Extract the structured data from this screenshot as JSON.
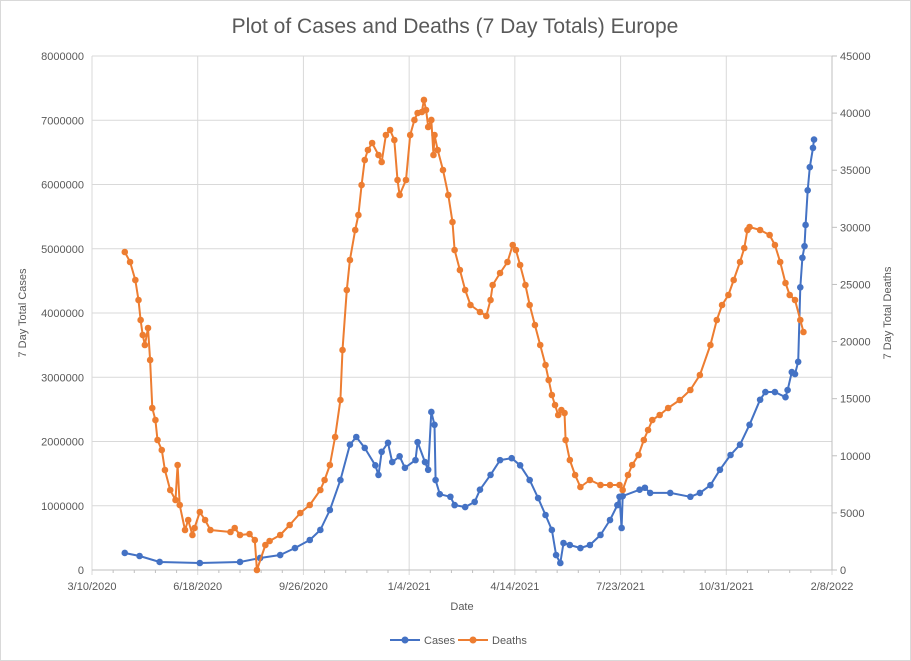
{
  "chart_data": {
    "type": "line",
    "title": "Plot of Cases and Deaths (7 Day Totals) Europe",
    "xlabel": "Date",
    "ylabel": "7 Day Total Cases",
    "y2label": "7 Day Total Deaths",
    "x_unit": "days since 3/10/2020",
    "xlim": [
      0,
      700
    ],
    "ylim": [
      0,
      8000000
    ],
    "y2lim": [
      0,
      45000
    ],
    "grid": true,
    "legend_position": "bottom",
    "x_ticks": [
      {
        "day": 0,
        "label": "3/10/2020"
      },
      {
        "day": 100,
        "label": "6/18/2020"
      },
      {
        "day": 200,
        "label": "9/26/2020"
      },
      {
        "day": 300,
        "label": "1/4/2021"
      },
      {
        "day": 400,
        "label": "4/14/2021"
      },
      {
        "day": 500,
        "label": "7/23/2021"
      },
      {
        "day": 600,
        "label": "10/31/2021"
      },
      {
        "day": 700,
        "label": "2/8/2022"
      }
    ],
    "y_ticks": [
      "0",
      "1000000",
      "2000000",
      "3000000",
      "4000000",
      "5000000",
      "6000000",
      "7000000",
      "8000000"
    ],
    "y2_ticks": [
      "0",
      "5000",
      "10000",
      "15000",
      "20000",
      "25000",
      "30000",
      "35000",
      "40000",
      "45000"
    ],
    "series": [
      {
        "name": "Cases",
        "axis": "left",
        "color": "#4472C4",
        "points": [
          [
            31,
            265000
          ],
          [
            45,
            218000
          ],
          [
            64,
            125000
          ],
          [
            102,
            109000
          ],
          [
            140,
            125000
          ],
          [
            159,
            187000
          ],
          [
            178,
            233000
          ],
          [
            192,
            342000
          ],
          [
            206,
            467000
          ],
          [
            216,
            623000
          ],
          [
            225,
            934000
          ],
          [
            235,
            1400000
          ],
          [
            244,
            1950000
          ],
          [
            250,
            2070000
          ],
          [
            258,
            1900000
          ],
          [
            268,
            1630000
          ],
          [
            271,
            1480000
          ],
          [
            274,
            1840000
          ],
          [
            280,
            1980000
          ],
          [
            284,
            1680000
          ],
          [
            291,
            1770000
          ],
          [
            296,
            1590000
          ],
          [
            306,
            1710000
          ],
          [
            308,
            1990000
          ],
          [
            315,
            1680000
          ],
          [
            318,
            1560000
          ],
          [
            321,
            2460000
          ],
          [
            324,
            2260000
          ],
          [
            325,
            1400000
          ],
          [
            329,
            1180000
          ],
          [
            339,
            1140000
          ],
          [
            343,
            1010000
          ],
          [
            353,
            980000
          ],
          [
            362,
            1060000
          ],
          [
            367,
            1250000
          ],
          [
            377,
            1480000
          ],
          [
            386,
            1710000
          ],
          [
            397,
            1740000
          ],
          [
            405,
            1630000
          ],
          [
            414,
            1400000
          ],
          [
            422,
            1120000
          ],
          [
            429,
            856000
          ],
          [
            435,
            623000
          ],
          [
            439,
            233000
          ],
          [
            443,
            109000
          ],
          [
            446,
            420000
          ],
          [
            452,
            389000
          ],
          [
            462,
            342000
          ],
          [
            471,
            389000
          ],
          [
            481,
            545000
          ],
          [
            490,
            778000
          ],
          [
            497,
            1010000
          ],
          [
            499,
            1140000
          ],
          [
            501,
            654000
          ],
          [
            502,
            1150000
          ],
          [
            518,
            1250000
          ],
          [
            523,
            1280000
          ],
          [
            528,
            1200000
          ],
          [
            547,
            1200000
          ],
          [
            566,
            1140000
          ],
          [
            575,
            1200000
          ],
          [
            585,
            1320000
          ],
          [
            594,
            1560000
          ],
          [
            604,
            1790000
          ],
          [
            613,
            1950000
          ],
          [
            622,
            2260000
          ],
          [
            632,
            2650000
          ],
          [
            637,
            2770000
          ],
          [
            646,
            2770000
          ],
          [
            656,
            2690000
          ],
          [
            658,
            2800000
          ],
          [
            662,
            3080000
          ],
          [
            665,
            3050000
          ],
          [
            668,
            3240000
          ],
          [
            670,
            4400000
          ],
          [
            672,
            4860000
          ],
          [
            674,
            5040000
          ],
          [
            675,
            5370000
          ],
          [
            677,
            5910000
          ],
          [
            679,
            6270000
          ],
          [
            682,
            6570000
          ],
          [
            683,
            6700000
          ]
        ]
      },
      {
        "name": "Deaths",
        "axis": "right",
        "color": "#ED7D31",
        "points": [
          [
            31,
            27841
          ],
          [
            36,
            26966
          ],
          [
            41,
            25390
          ],
          [
            44,
            23639
          ],
          [
            46,
            21888
          ],
          [
            48,
            20574
          ],
          [
            50,
            19699
          ],
          [
            53,
            21187
          ],
          [
            55,
            18386
          ],
          [
            57,
            14183
          ],
          [
            60,
            13133
          ],
          [
            62,
            11382
          ],
          [
            66,
            10506
          ],
          [
            69,
            8755
          ],
          [
            74,
            7004
          ],
          [
            79,
            6129
          ],
          [
            81,
            9193
          ],
          [
            83,
            5691
          ],
          [
            88,
            3502
          ],
          [
            91,
            4378
          ],
          [
            95,
            3064
          ],
          [
            97,
            3677
          ],
          [
            102,
            5078
          ],
          [
            107,
            4378
          ],
          [
            112,
            3502
          ],
          [
            131,
            3327
          ],
          [
            135,
            3677
          ],
          [
            140,
            3064
          ],
          [
            149,
            3152
          ],
          [
            154,
            2627
          ],
          [
            156,
            0
          ],
          [
            164,
            2189
          ],
          [
            168,
            2539
          ],
          [
            178,
            3064
          ],
          [
            187,
            3940
          ],
          [
            197,
            4990
          ],
          [
            206,
            5691
          ],
          [
            216,
            7004
          ],
          [
            220,
            7880
          ],
          [
            225,
            9193
          ],
          [
            230,
            11644
          ],
          [
            235,
            14884
          ],
          [
            237,
            19261
          ],
          [
            241,
            24514
          ],
          [
            244,
            27141
          ],
          [
            249,
            29767
          ],
          [
            252,
            31080
          ],
          [
            255,
            33707
          ],
          [
            258,
            35896
          ],
          [
            261,
            36771
          ],
          [
            265,
            37384
          ],
          [
            271,
            36333
          ],
          [
            274,
            35720
          ],
          [
            278,
            38084
          ],
          [
            282,
            38522
          ],
          [
            286,
            37647
          ],
          [
            289,
            34145
          ],
          [
            291,
            32831
          ],
          [
            297,
            34145
          ],
          [
            301,
            38084
          ],
          [
            305,
            39398
          ],
          [
            308,
            40010
          ],
          [
            312,
            40098
          ],
          [
            314,
            41149
          ],
          [
            316,
            40273
          ],
          [
            318,
            38785
          ],
          [
            321,
            39398
          ],
          [
            323,
            36333
          ],
          [
            324,
            38084
          ],
          [
            327,
            36771
          ],
          [
            332,
            35020
          ],
          [
            337,
            32831
          ],
          [
            341,
            30467
          ],
          [
            343,
            28016
          ],
          [
            348,
            26265
          ],
          [
            353,
            24514
          ],
          [
            358,
            23201
          ],
          [
            367,
            22588
          ],
          [
            373,
            22238
          ],
          [
            377,
            23639
          ],
          [
            379,
            24952
          ],
          [
            386,
            26003
          ],
          [
            393,
            26966
          ],
          [
            398,
            28454
          ],
          [
            401,
            28016
          ],
          [
            405,
            26703
          ],
          [
            410,
            24952
          ],
          [
            414,
            23201
          ],
          [
            419,
            21450
          ],
          [
            424,
            19699
          ],
          [
            429,
            17948
          ],
          [
            432,
            16635
          ],
          [
            435,
            15321
          ],
          [
            438,
            14446
          ],
          [
            441,
            13570
          ],
          [
            444,
            14008
          ],
          [
            447,
            13745
          ],
          [
            448,
            11382
          ],
          [
            452,
            9631
          ],
          [
            457,
            8317
          ],
          [
            462,
            7267
          ],
          [
            471,
            7880
          ],
          [
            481,
            7442
          ],
          [
            490,
            7442
          ],
          [
            499,
            7442
          ],
          [
            502,
            7004
          ],
          [
            507,
            8317
          ],
          [
            511,
            9193
          ],
          [
            517,
            10068
          ],
          [
            522,
            11382
          ],
          [
            526,
            12257
          ],
          [
            530,
            13133
          ],
          [
            537,
            13570
          ],
          [
            545,
            14183
          ],
          [
            556,
            14884
          ],
          [
            566,
            15759
          ],
          [
            575,
            17072
          ],
          [
            585,
            19699
          ],
          [
            591,
            21888
          ],
          [
            596,
            23201
          ],
          [
            602,
            24076
          ],
          [
            607,
            25390
          ],
          [
            613,
            26966
          ],
          [
            617,
            28191
          ],
          [
            620,
            29767
          ],
          [
            622,
            30030
          ],
          [
            632,
            29767
          ],
          [
            641,
            29329
          ],
          [
            646,
            28454
          ],
          [
            651,
            26966
          ],
          [
            656,
            25127
          ],
          [
            660,
            24076
          ],
          [
            665,
            23639
          ],
          [
            670,
            21888
          ],
          [
            673,
            20837
          ]
        ]
      }
    ]
  }
}
